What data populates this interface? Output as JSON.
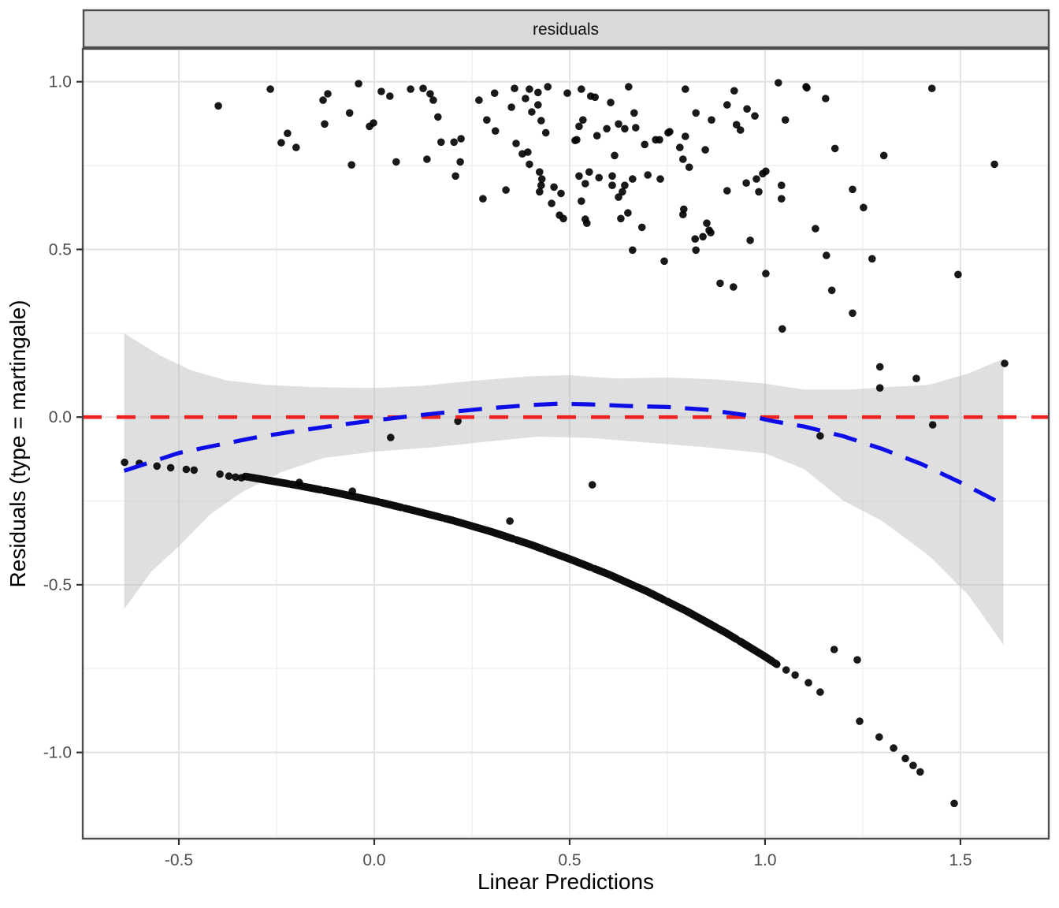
{
  "strip": {
    "label": "residuals"
  },
  "axes": {
    "x": {
      "title": "Linear Predictions",
      "range": [
        -0.746,
        1.726
      ],
      "ticks": [
        -0.5,
        0.0,
        0.5,
        1.0,
        1.5
      ],
      "tick_labels": [
        "-0.5",
        "0.0",
        "0.5",
        "1.0",
        "1.5"
      ],
      "minor_ticks": [
        -0.25,
        0.25,
        0.75,
        1.25
      ]
    },
    "y": {
      "title": "Residuals (type = martingale)",
      "range": [
        -1.257,
        1.098
      ],
      "ticks": [
        1.0,
        0.5,
        0.0,
        -0.5,
        -1.0
      ],
      "tick_labels": [
        "1.0",
        "0.5",
        "0.0",
        "-0.5",
        "-1.0"
      ],
      "minor_ticks": [
        0.75,
        0.25,
        -0.25,
        -0.75,
        -1.25
      ]
    }
  },
  "colors": {
    "background": "#FFFFFF",
    "panel_bg": "#FFFFFF",
    "strip_bg": "#D9D9D9",
    "strip_border": "#4D4D4D",
    "panel_border": "#4D4D4D",
    "grid_major": "#E4E4E4",
    "grid_minor": "#F1F1F1",
    "tick_mark": "#333333",
    "tick_label": "#4D4D4D",
    "point": "#000000",
    "reference_red": "#EC2121",
    "smooth_blue": "#0D0DE8",
    "band_gray": "#B9B9B9"
  },
  "chart_data": {
    "type": "scatter",
    "title": "residuals",
    "xlabel": "Linear Predictions",
    "ylabel": "Residuals (type = martingale)",
    "xlim": [
      -0.746,
      1.726
    ],
    "ylim": [
      -1.257,
      1.098
    ],
    "grid": "on",
    "legend": "none",
    "reference_line": {
      "y": 0.0,
      "color": "#EC2121",
      "linetype": "dashed"
    },
    "smooth_line": {
      "color": "#0D0DE8",
      "linetype": "dashed",
      "points": [
        [
          -0.64,
          -0.16
        ],
        [
          -0.5,
          -0.107
        ],
        [
          -0.4,
          -0.083
        ],
        [
          -0.3,
          -0.06
        ],
        [
          -0.2,
          -0.042
        ],
        [
          -0.1,
          -0.025
        ],
        [
          0.0,
          -0.01
        ],
        [
          0.1,
          0.004
        ],
        [
          0.2,
          0.016
        ],
        [
          0.3,
          0.027
        ],
        [
          0.4,
          0.036
        ],
        [
          0.47,
          0.04
        ],
        [
          0.55,
          0.038
        ],
        [
          0.65,
          0.033
        ],
        [
          0.75,
          0.03
        ],
        [
          0.85,
          0.022
        ],
        [
          0.95,
          0.006
        ],
        [
          1.02,
          -0.012
        ],
        [
          1.1,
          -0.028
        ],
        [
          1.2,
          -0.057
        ],
        [
          1.3,
          -0.095
        ],
        [
          1.4,
          -0.14
        ],
        [
          1.5,
          -0.195
        ],
        [
          1.6,
          -0.255
        ]
      ]
    },
    "confidence_band": {
      "fill": "#B9B9B9",
      "opacity": 0.45,
      "upper": [
        [
          -0.64,
          0.25
        ],
        [
          -0.55,
          0.185
        ],
        [
          -0.47,
          0.14
        ],
        [
          -0.38,
          0.11
        ],
        [
          -0.28,
          0.096
        ],
        [
          -0.15,
          0.089
        ],
        [
          0.0,
          0.087
        ],
        [
          0.12,
          0.093
        ],
        [
          0.25,
          0.108
        ],
        [
          0.4,
          0.122
        ],
        [
          0.5,
          0.125
        ],
        [
          0.62,
          0.115
        ],
        [
          0.75,
          0.118
        ],
        [
          0.88,
          0.112
        ],
        [
          1.0,
          0.1
        ],
        [
          1.1,
          0.082
        ],
        [
          1.22,
          0.082
        ],
        [
          1.32,
          0.09
        ],
        [
          1.42,
          0.096
        ],
        [
          1.52,
          0.13
        ],
        [
          1.61,
          0.174
        ]
      ],
      "lower": [
        [
          -0.64,
          -0.573
        ],
        [
          -0.57,
          -0.46
        ],
        [
          -0.5,
          -0.385
        ],
        [
          -0.42,
          -0.29
        ],
        [
          -0.34,
          -0.225
        ],
        [
          -0.24,
          -0.165
        ],
        [
          -0.13,
          -0.122
        ],
        [
          0.0,
          -0.103
        ],
        [
          0.15,
          -0.09
        ],
        [
          0.3,
          -0.072
        ],
        [
          0.42,
          -0.058
        ],
        [
          0.55,
          -0.062
        ],
        [
          0.7,
          -0.076
        ],
        [
          0.85,
          -0.09
        ],
        [
          1.0,
          -0.108
        ],
        [
          1.1,
          -0.155
        ],
        [
          1.2,
          -0.249
        ],
        [
          1.3,
          -0.31
        ],
        [
          1.42,
          -0.414
        ],
        [
          1.52,
          -0.53
        ],
        [
          1.61,
          -0.679
        ]
      ]
    },
    "series": [
      {
        "name": "upper-cloud",
        "marker": "circle",
        "color": "#000000",
        "points": [
          [
            -0.399,
            0.928
          ],
          [
            -0.266,
            0.978
          ],
          [
            -0.131,
            0.945
          ],
          [
            -0.119,
            0.964
          ],
          [
            -0.127,
            0.874
          ],
          [
            -0.222,
            0.846
          ],
          [
            -0.238,
            0.818
          ],
          [
            -0.2,
            0.804
          ],
          [
            -0.063,
            0.907
          ],
          [
            -0.058,
            0.752
          ],
          [
            -0.04,
            0.994
          ],
          [
            -0.012,
            0.867
          ],
          [
            -0.002,
            0.877
          ],
          [
            0.018,
            0.971
          ],
          [
            0.04,
            0.957
          ],
          [
            0.056,
            0.761
          ],
          [
            0.093,
            0.978
          ],
          [
            0.125,
            0.98
          ],
          [
            0.143,
            0.964
          ],
          [
            0.151,
            0.945
          ],
          [
            0.163,
            0.895
          ],
          [
            0.171,
            0.82
          ],
          [
            0.204,
            0.82
          ],
          [
            0.222,
            0.83
          ],
          [
            0.135,
            0.769
          ],
          [
            0.22,
            0.761
          ],
          [
            0.208,
            0.719
          ],
          [
            0.278,
            0.651
          ],
          [
            0.337,
            0.677
          ],
          [
            0.268,
            0.945
          ],
          [
            0.308,
            0.966
          ],
          [
            0.288,
            0.886
          ],
          [
            0.31,
            0.853
          ],
          [
            0.351,
            0.924
          ],
          [
            0.359,
            0.98
          ],
          [
            0.397,
            0.978
          ],
          [
            0.419,
            0.968
          ],
          [
            0.444,
            0.985
          ],
          [
            0.387,
            0.95
          ],
          [
            0.419,
            0.931
          ],
          [
            0.403,
            0.91
          ],
          [
            0.494,
            0.966
          ],
          [
            0.53,
            0.978
          ],
          [
            0.554,
            0.957
          ],
          [
            0.565,
            0.954
          ],
          [
            0.605,
            0.938
          ],
          [
            0.651,
            0.985
          ],
          [
            0.796,
            0.978
          ],
          [
            0.921,
            0.973
          ],
          [
            1.034,
            0.997
          ],
          [
            1.105,
            0.985
          ],
          [
            1.155,
            0.95
          ],
          [
            0.427,
            0.884
          ],
          [
            0.439,
            0.848
          ],
          [
            0.524,
            0.867
          ],
          [
            0.534,
            0.886
          ],
          [
            0.518,
            0.827
          ],
          [
            0.57,
            0.839
          ],
          [
            0.595,
            0.86
          ],
          [
            0.625,
            0.874
          ],
          [
            0.641,
            0.86
          ],
          [
            0.665,
            0.907
          ],
          [
            0.669,
            0.863
          ],
          [
            0.756,
            0.851
          ],
          [
            0.796,
            0.837
          ],
          [
            0.823,
            0.907
          ],
          [
            0.863,
            0.886
          ],
          [
            0.903,
            0.931
          ],
          [
            0.927,
            0.872
          ],
          [
            0.937,
            0.856
          ],
          [
            0.954,
            0.919
          ],
          [
            0.974,
            0.898
          ],
          [
            1.052,
            0.886
          ],
          [
            0.363,
            0.816
          ],
          [
            0.379,
            0.785
          ],
          [
            0.393,
            0.79
          ],
          [
            0.397,
            0.754
          ],
          [
            0.514,
            0.825
          ],
          [
            0.692,
            0.813
          ],
          [
            0.72,
            0.827
          ],
          [
            0.73,
            0.827
          ],
          [
            0.752,
            0.848
          ],
          [
            0.615,
            0.78
          ],
          [
            0.782,
            0.804
          ],
          [
            0.79,
            0.769
          ],
          [
            0.806,
            0.745
          ],
          [
            0.847,
            0.797
          ],
          [
            0.423,
            0.731
          ],
          [
            0.429,
            0.71
          ],
          [
            0.427,
            0.691
          ],
          [
            0.46,
            0.686
          ],
          [
            0.478,
            0.667
          ],
          [
            0.423,
            0.672
          ],
          [
            0.454,
            0.637
          ],
          [
            0.524,
            0.719
          ],
          [
            0.55,
            0.731
          ],
          [
            0.575,
            0.714
          ],
          [
            0.609,
            0.719
          ],
          [
            0.609,
            0.691
          ],
          [
            0.641,
            0.691
          ],
          [
            0.635,
            0.672
          ],
          [
            0.661,
            0.71
          ],
          [
            0.7,
            0.722
          ],
          [
            0.732,
            0.71
          ],
          [
            0.625,
            0.656
          ],
          [
            0.54,
            0.696
          ],
          [
            0.903,
            0.675
          ],
          [
            0.952,
            0.698
          ],
          [
            0.978,
            0.71
          ],
          [
            0.984,
            0.672
          ],
          [
            0.994,
            0.726
          ],
          [
            1.002,
            0.733
          ],
          [
            1.042,
            0.691
          ],
          [
            1.042,
            0.651
          ],
          [
            0.474,
            0.602
          ],
          [
            0.484,
            0.592
          ],
          [
            0.53,
            0.644
          ],
          [
            0.54,
            0.59
          ],
          [
            0.544,
            0.578
          ],
          [
            0.631,
            0.592
          ],
          [
            0.649,
            0.609
          ],
          [
            0.685,
            0.566
          ],
          [
            0.792,
            0.62
          ],
          [
            0.79,
            0.604
          ],
          [
            0.851,
            0.578
          ],
          [
            0.857,
            0.557
          ],
          [
            0.861,
            0.55
          ],
          [
            0.841,
            0.538
          ],
          [
            0.821,
            0.531
          ],
          [
            0.962,
            0.527
          ],
          [
            1.129,
            0.562
          ],
          [
            0.661,
            0.498
          ],
          [
            0.823,
            0.498
          ],
          [
            0.742,
            0.465
          ],
          [
            1.002,
            0.428
          ],
          [
            0.885,
            0.399
          ],
          [
            0.919,
            0.388
          ],
          [
            1.107,
            0.982
          ],
          [
            1.427,
            0.98
          ],
          [
            1.179,
            0.801
          ],
          [
            1.304,
            0.78
          ],
          [
            1.587,
            0.754
          ],
          [
            1.224,
            0.679
          ],
          [
            1.252,
            0.625
          ],
          [
            1.157,
            0.482
          ],
          [
            1.274,
            0.472
          ],
          [
            1.494,
            0.425
          ],
          [
            1.171,
            0.378
          ],
          [
            1.224,
            0.31
          ],
          [
            1.044,
            0.263
          ],
          [
            1.294,
            0.15
          ],
          [
            1.387,
            0.115
          ],
          [
            1.294,
            0.087
          ],
          [
            1.613,
            0.16
          ]
        ]
      },
      {
        "name": "lower-curve-left-points",
        "marker": "circle",
        "color": "#000000",
        "points": [
          [
            -0.639,
            -0.135
          ],
          [
            -0.601,
            -0.138
          ],
          [
            -0.556,
            -0.146
          ],
          [
            -0.521,
            -0.151
          ],
          [
            -0.481,
            -0.156
          ],
          [
            -0.461,
            -0.158
          ],
          [
            -0.395,
            -0.17
          ],
          [
            -0.372,
            -0.176
          ],
          [
            -0.355,
            -0.179
          ],
          [
            -0.34,
            -0.181
          ]
        ]
      },
      {
        "name": "lower-curve-dense-arc",
        "style": "overlapping-points",
        "color": "#000000",
        "points": [
          [
            -0.33,
            -0.177
          ],
          [
            -0.2,
            -0.203
          ],
          [
            -0.1,
            -0.225
          ],
          [
            0.0,
            -0.25
          ],
          [
            0.1,
            -0.278
          ],
          [
            0.2,
            -0.308
          ],
          [
            0.3,
            -0.342
          ],
          [
            0.4,
            -0.38
          ],
          [
            0.5,
            -0.423
          ],
          [
            0.6,
            -0.469
          ],
          [
            0.7,
            -0.521
          ],
          [
            0.8,
            -0.579
          ],
          [
            0.9,
            -0.643
          ],
          [
            1.0,
            -0.714
          ],
          [
            1.03,
            -0.737
          ]
        ]
      },
      {
        "name": "lower-tail-points",
        "marker": "circle",
        "color": "#000000",
        "points": [
          [
            1.054,
            -0.754
          ],
          [
            1.077,
            -0.769
          ],
          [
            1.111,
            -0.792
          ],
          [
            1.141,
            -0.82
          ],
          [
            1.177,
            -0.693
          ],
          [
            1.236,
            -0.724
          ],
          [
            1.242,
            -0.907
          ],
          [
            1.292,
            -0.954
          ],
          [
            1.329,
            -0.987
          ],
          [
            1.359,
            -1.018
          ],
          [
            1.379,
            -1.039
          ],
          [
            1.397,
            -1.058
          ],
          [
            1.484,
            -1.152
          ]
        ]
      },
      {
        "name": "mid-outliers",
        "marker": "circle",
        "color": "#000000",
        "points": [
          [
            0.042,
            -0.061
          ],
          [
            0.214,
            -0.012
          ],
          [
            -0.056,
            -0.221
          ],
          [
            -0.192,
            -0.195
          ],
          [
            0.347,
            -0.31
          ],
          [
            0.558,
            -0.202
          ],
          [
            1.141,
            -0.056
          ],
          [
            1.429,
            -0.023
          ]
        ]
      }
    ]
  }
}
